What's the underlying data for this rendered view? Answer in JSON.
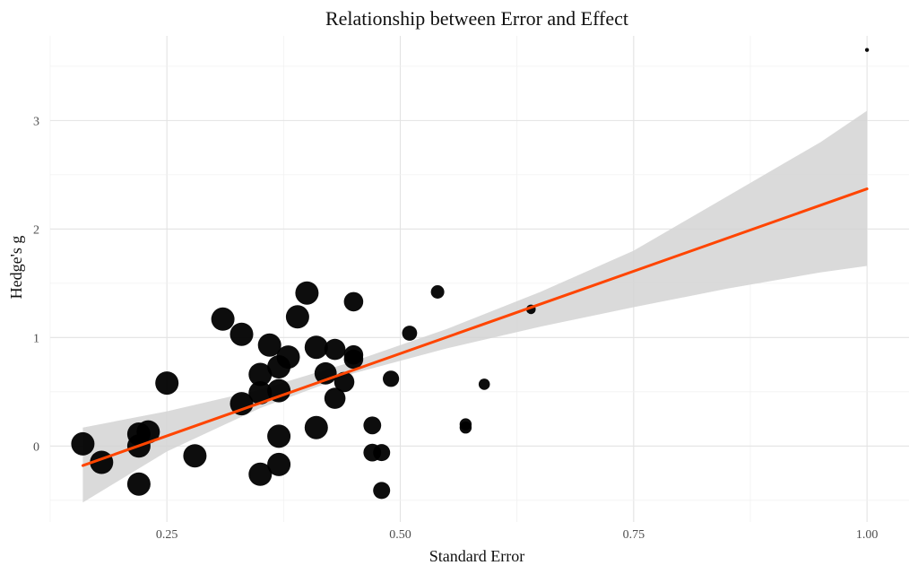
{
  "chart_data": {
    "type": "scatter",
    "title": "Relationship between Error and Effect",
    "xlabel": "Standard Error",
    "ylabel": "Hedge's g",
    "xlim": [
      0.125,
      1.045
    ],
    "ylim": [
      -0.7,
      3.78
    ],
    "x_ticks": [
      0.25,
      0.5,
      0.75,
      1.0
    ],
    "x_tick_labels": [
      "0.25",
      "0.50",
      "0.75",
      "1.00"
    ],
    "y_ticks": [
      0,
      1,
      2,
      3
    ],
    "y_tick_labels": [
      "0",
      "1",
      "2",
      "3"
    ],
    "grid": true,
    "legend": "none",
    "point_color": "#000000",
    "point_size_note": "point size larger for smaller standard error",
    "points": [
      {
        "x": 0.16,
        "y": 0.02
      },
      {
        "x": 0.18,
        "y": -0.15
      },
      {
        "x": 0.22,
        "y": -0.35
      },
      {
        "x": 0.22,
        "y": 0.0
      },
      {
        "x": 0.22,
        "y": 0.11
      },
      {
        "x": 0.23,
        "y": 0.13
      },
      {
        "x": 0.25,
        "y": 0.58
      },
      {
        "x": 0.28,
        "y": -0.09
      },
      {
        "x": 0.31,
        "y": 1.17
      },
      {
        "x": 0.33,
        "y": 1.03
      },
      {
        "x": 0.33,
        "y": 0.39
      },
      {
        "x": 0.35,
        "y": 0.66
      },
      {
        "x": 0.35,
        "y": 0.49
      },
      {
        "x": 0.35,
        "y": -0.26
      },
      {
        "x": 0.36,
        "y": 0.93
      },
      {
        "x": 0.37,
        "y": 0.73
      },
      {
        "x": 0.37,
        "y": 0.51
      },
      {
        "x": 0.37,
        "y": 0.09
      },
      {
        "x": 0.37,
        "y": -0.17
      },
      {
        "x": 0.38,
        "y": 0.82
      },
      {
        "x": 0.39,
        "y": 1.19
      },
      {
        "x": 0.4,
        "y": 1.41
      },
      {
        "x": 0.41,
        "y": 0.91
      },
      {
        "x": 0.41,
        "y": 0.17
      },
      {
        "x": 0.42,
        "y": 0.67
      },
      {
        "x": 0.43,
        "y": 0.89
      },
      {
        "x": 0.43,
        "y": 0.44
      },
      {
        "x": 0.44,
        "y": 0.59
      },
      {
        "x": 0.45,
        "y": 1.33
      },
      {
        "x": 0.45,
        "y": 0.84
      },
      {
        "x": 0.45,
        "y": 0.8
      },
      {
        "x": 0.47,
        "y": 0.19
      },
      {
        "x": 0.47,
        "y": -0.06
      },
      {
        "x": 0.48,
        "y": -0.06
      },
      {
        "x": 0.48,
        "y": -0.41
      },
      {
        "x": 0.49,
        "y": 0.62
      },
      {
        "x": 0.51,
        "y": 1.04
      },
      {
        "x": 0.54,
        "y": 1.42
      },
      {
        "x": 0.57,
        "y": 0.2
      },
      {
        "x": 0.57,
        "y": 0.17
      },
      {
        "x": 0.59,
        "y": 0.57
      },
      {
        "x": 0.64,
        "y": 1.26
      },
      {
        "x": 1.0,
        "y": 3.65
      }
    ],
    "fit_line": {
      "color": "#ff4500",
      "x": [
        0.16,
        1.0
      ],
      "y": [
        -0.18,
        2.37
      ]
    },
    "confidence_band": {
      "color": "#d3d3d3",
      "x": [
        0.16,
        0.25,
        0.35,
        0.45,
        0.55,
        0.65,
        0.75,
        0.85,
        0.95,
        1.0
      ],
      "lower": [
        -0.52,
        -0.05,
        0.35,
        0.67,
        0.9,
        1.1,
        1.28,
        1.45,
        1.6,
        1.66
      ],
      "upper": [
        0.17,
        0.32,
        0.52,
        0.78,
        1.08,
        1.42,
        1.8,
        2.3,
        2.8,
        3.09
      ]
    }
  }
}
